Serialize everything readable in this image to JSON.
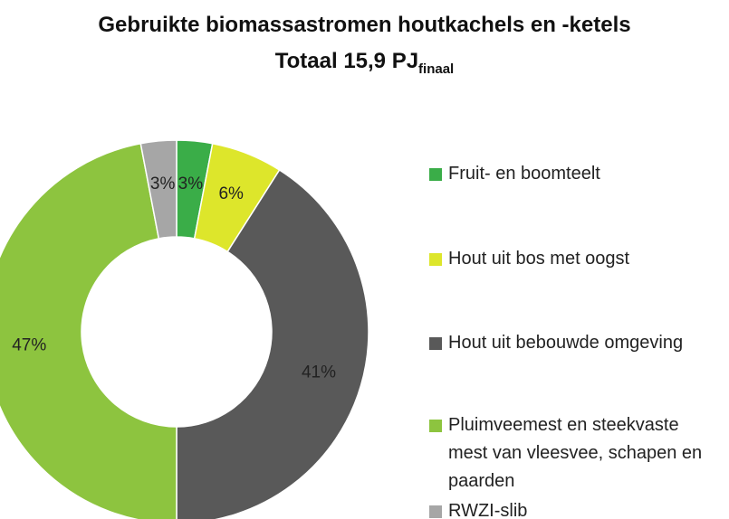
{
  "chart_data": {
    "type": "donut",
    "title": "Gebruikte biomassastromen houtkachels en -ketels",
    "subtitle": {
      "text": "Totaal 15,9 PJ",
      "subscript": "finaal"
    },
    "categories": [
      "Fruit- en boomteelt",
      "Hout uit bos met oogst",
      "Hout uit bebouwde omgeving",
      "Pluimveemest en steekvaste mest van vleesvee, schapen en paarden",
      "RWZI-slib"
    ],
    "values": [
      3,
      6,
      41,
      47,
      3
    ],
    "value_labels": [
      "3%",
      "6%",
      "41%",
      "47%",
      "3%"
    ],
    "colors": [
      "#3aad48",
      "#dde62b",
      "#595959",
      "#8dc43f",
      "#a6a6a6"
    ],
    "legend": "right"
  }
}
